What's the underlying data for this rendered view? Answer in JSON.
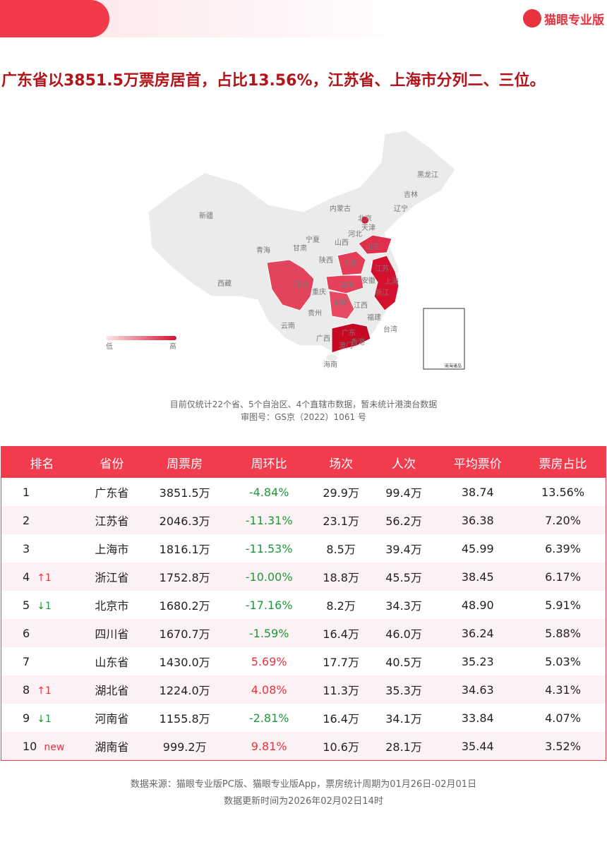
{
  "header": {
    "logo": "猫眼专业版"
  },
  "headline": "广东省以3851.5万票房居首，占比13.56%，江苏省、上海市分列二、三位。",
  "map": {
    "labels": [
      "黑龙江",
      "吉林",
      "辽宁",
      "内蒙古",
      "北京",
      "天津",
      "新疆",
      "宁夏",
      "河北",
      "甘肃",
      "山西",
      "山东",
      "青海",
      "陕西",
      "河南",
      "江苏",
      "上海",
      "西藏",
      "四川",
      "重庆",
      "湖北",
      "安徽",
      "浙江",
      "湖南",
      "江西",
      "贵州",
      "云南",
      "福建",
      "台湾",
      "广西",
      "广东",
      "香港",
      "澳门",
      "海南",
      "南海诸岛"
    ],
    "legend_low": "低",
    "legend_high": "高"
  },
  "notes": [
    "目前仅统计22个省、5个自治区、4个直辖市数据，暂未统计港澳台数据",
    "审图号：GS京（2022）1061 号"
  ],
  "table": {
    "columns": [
      "排名",
      "省份",
      "周票房",
      "周环比",
      "场次",
      "人次",
      "平均票价",
      "票房占比"
    ],
    "rows": [
      [
        "1",
        "",
        "广东省",
        "3851.5万",
        "-4.84%",
        "29.9万",
        "99.4万",
        "38.74",
        "13.56%"
      ],
      [
        "2",
        "",
        "江苏省",
        "2046.3万",
        "-11.31%",
        "23.1万",
        "56.2万",
        "36.38",
        "7.20%"
      ],
      [
        "3",
        "",
        "上海市",
        "1816.1万",
        "-11.53%",
        "8.5万",
        "39.4万",
        "45.99",
        "6.39%"
      ],
      [
        "4",
        "↑1",
        "浙江省",
        "1752.8万",
        "-10.00%",
        "18.8万",
        "45.5万",
        "38.45",
        "6.17%"
      ],
      [
        "5",
        "↓1",
        "北京市",
        "1680.2万",
        "-17.16%",
        "8.2万",
        "34.3万",
        "48.90",
        "5.91%"
      ],
      [
        "6",
        "",
        "四川省",
        "1670.7万",
        "-1.59%",
        "16.4万",
        "46.0万",
        "36.24",
        "5.88%"
      ],
      [
        "7",
        "",
        "山东省",
        "1430.0万",
        "5.69%",
        "17.7万",
        "40.5万",
        "35.23",
        "5.03%"
      ],
      [
        "8",
        "↑1",
        "湖北省",
        "1224.0万",
        "4.08%",
        "11.3万",
        "35.3万",
        "34.63",
        "4.31%"
      ],
      [
        "9",
        "↓1",
        "河南省",
        "1155.8万",
        "-2.81%",
        "16.4万",
        "34.1万",
        "33.84",
        "4.07%"
      ],
      [
        "10",
        "new",
        "湖南省",
        "999.2万",
        "9.81%",
        "10.6万",
        "28.1万",
        "35.44",
        "3.52%"
      ]
    ]
  },
  "footer": [
    "数据来源：猫眼专业版PC版、猫眼专业版App，票房统计周期为01月26日-02月01日",
    "数据更新时间为2026年02月02日14时"
  ]
}
